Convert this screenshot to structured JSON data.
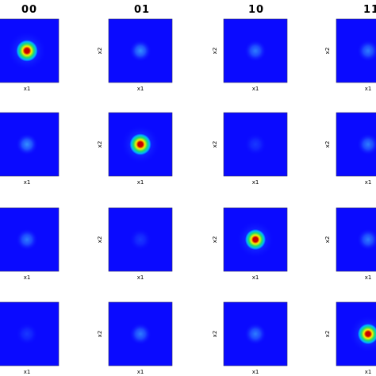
{
  "chart_data": {
    "type": "heatmap",
    "column_titles": [
      "00",
      "01",
      "10",
      "11"
    ],
    "xlabel": "x1",
    "ylabel": "x2",
    "colormap": "jet",
    "panels": [
      [
        {
          "intensity": 1.0,
          "hot": true
        },
        {
          "intensity": 0.35,
          "hot": false
        },
        {
          "intensity": 0.3,
          "hot": false
        },
        {
          "intensity": 0.3,
          "hot": false
        }
      ],
      [
        {
          "intensity": 0.35,
          "hot": false
        },
        {
          "intensity": 1.0,
          "hot": true
        },
        {
          "intensity": 0.12,
          "hot": false
        },
        {
          "intensity": 0.3,
          "hot": false
        }
      ],
      [
        {
          "intensity": 0.3,
          "hot": false
        },
        {
          "intensity": 0.12,
          "hot": false
        },
        {
          "intensity": 0.85,
          "hot": true
        },
        {
          "intensity": 0.3,
          "hot": false
        }
      ],
      [
        {
          "intensity": 0.12,
          "hot": false
        },
        {
          "intensity": 0.3,
          "hot": false
        },
        {
          "intensity": 0.3,
          "hot": false
        },
        {
          "intensity": 0.85,
          "hot": true
        }
      ]
    ]
  },
  "colors": {
    "background": "#0a0aff",
    "hot_core": "#c80000",
    "hot_ring1": "#ffee00",
    "hot_ring2": "#22dd66",
    "hot_ring3": "#00b4ff",
    "glow": "#3fb8ff"
  }
}
